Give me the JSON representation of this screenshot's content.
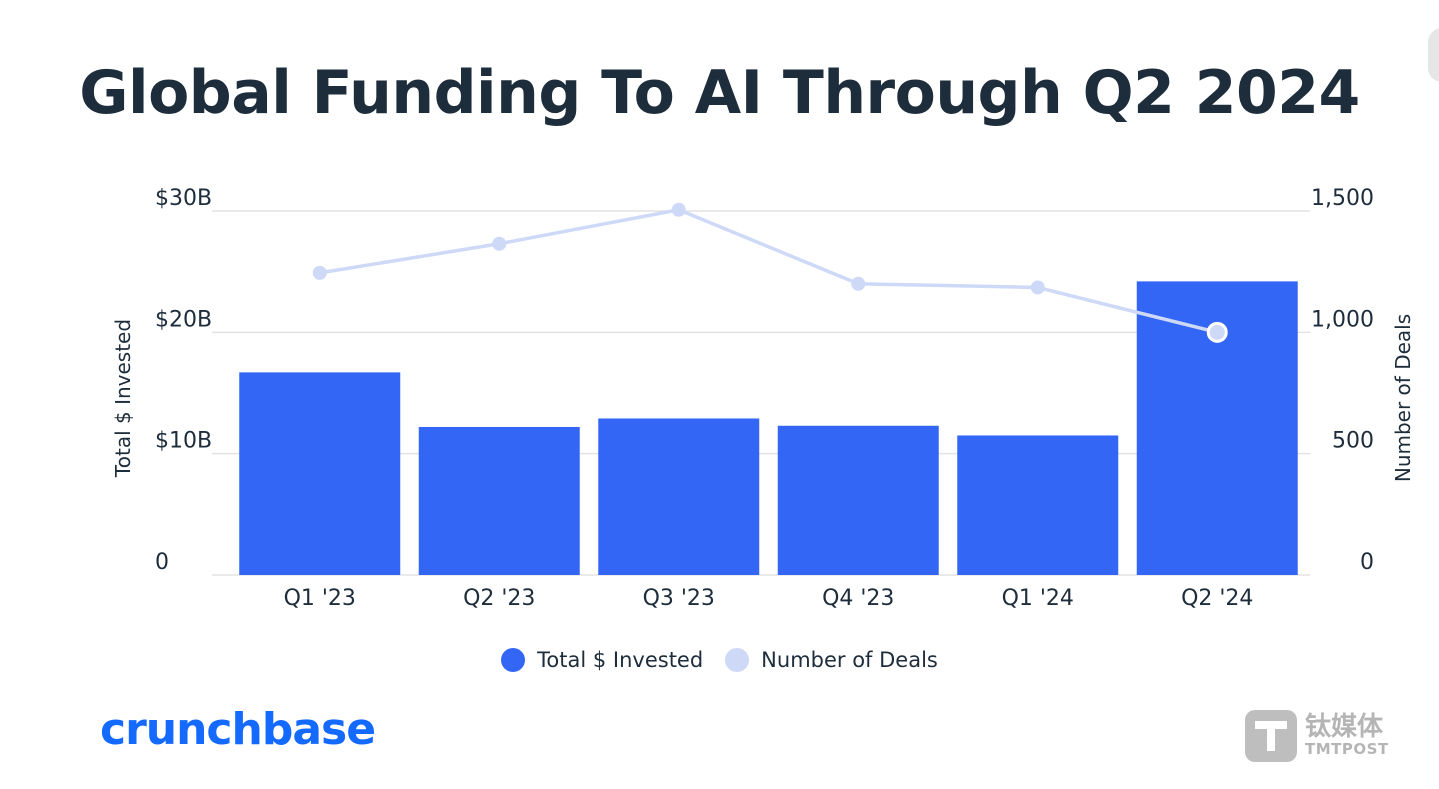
{
  "title": "Global Funding To AI Through Q2 2024",
  "brand": "crunchbase",
  "watermark": {
    "cn": "钛媒体",
    "en": "TMTPOST"
  },
  "colors": {
    "bar": "#3366f4",
    "line": "#cdd9f7",
    "title": "#1e2d3b",
    "brand": "#146aff",
    "grid": "#e3e3e3"
  },
  "chart_data": {
    "type": "bar",
    "title": "Global Funding To AI Through Q2 2024",
    "categories": [
      "Q1 '23",
      "Q2 '23",
      "Q3 '23",
      "Q4 '23",
      "Q1 '24",
      "Q2 '24"
    ],
    "series": [
      {
        "name": "Total $ Invested",
        "type": "bar",
        "axis": "left",
        "values": [
          16.7,
          12.2,
          12.9,
          12.3,
          11.5,
          24.2
        ]
      },
      {
        "name": "Number of Deals",
        "type": "line",
        "axis": "right",
        "values": [
          1245,
          1365,
          1505,
          1200,
          1185,
          1000
        ]
      }
    ],
    "ylabel": "Total $ Invested",
    "y2label": "Number of Deals",
    "ylim": [
      0,
      30
    ],
    "y2lim": [
      0,
      1500
    ],
    "yticks": [
      "0",
      "$10B",
      "$20B",
      "$30B"
    ],
    "y2ticks": [
      "0",
      "500",
      "1,000",
      "1,500"
    ],
    "grid": true,
    "legend": "bottom-center"
  }
}
